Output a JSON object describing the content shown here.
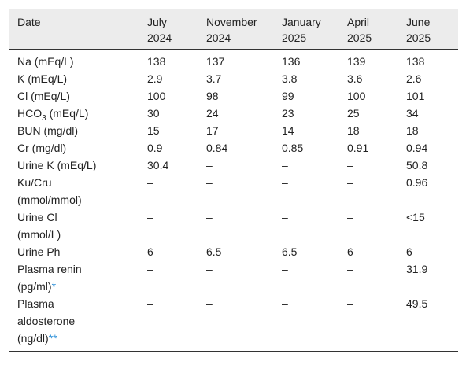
{
  "table": {
    "header": [
      [
        "Date"
      ],
      [
        "July",
        "2024"
      ],
      [
        "November",
        "2024"
      ],
      [
        "January",
        "2025"
      ],
      [
        "April",
        "2025"
      ],
      [
        "June",
        "2025"
      ]
    ],
    "rows": [
      {
        "label": [
          "Na (mEq/L)"
        ],
        "values": [
          "138",
          "137",
          "136",
          "139",
          "138"
        ]
      },
      {
        "label": [
          "K (mEq/L)"
        ],
        "values": [
          "2.9",
          "3.7",
          "3.8",
          "3.6",
          "2.6"
        ]
      },
      {
        "label": [
          "Cl (mEq/L)"
        ],
        "values": [
          "100",
          "98",
          "99",
          "100",
          "101"
        ]
      },
      {
        "label": [
          {
            "text": "HCO",
            "sub": "3",
            "after": " (mEq/L)"
          }
        ],
        "values": [
          "30",
          "24",
          "23",
          "25",
          "34"
        ]
      },
      {
        "label": [
          "BUN (mg/dl)"
        ],
        "values": [
          "15",
          "17",
          "14",
          "18",
          "18"
        ]
      },
      {
        "label": [
          "Cr (mg/dl)"
        ],
        "values": [
          "0.9",
          "0.84",
          "0.85",
          "0.91",
          "0.94"
        ]
      },
      {
        "label": [
          "Urine K (mEq/L)"
        ],
        "values": [
          "30.4",
          "–",
          "–",
          "–",
          "50.8"
        ]
      },
      {
        "label": [
          "Ku/Cru",
          "(mmol/mmol)"
        ],
        "values": [
          "–",
          "–",
          "–",
          "–",
          "0.96"
        ]
      },
      {
        "label": [
          "Urine Cl",
          "(mmol/L)"
        ],
        "values": [
          "–",
          "–",
          "–",
          "–",
          "<15"
        ]
      },
      {
        "label": [
          "Urine Ph"
        ],
        "values": [
          "6",
          "6.5",
          "6.5",
          "6",
          "6"
        ]
      },
      {
        "label": [
          "Plasma renin",
          "(pg/ml)"
        ],
        "note": "*",
        "values": [
          "–",
          "–",
          "–",
          "–",
          "31.9"
        ]
      },
      {
        "label": [
          "Plasma",
          "aldosterone",
          "(ng/dl)"
        ],
        "note": "**",
        "values": [
          "–",
          "–",
          "–",
          "–",
          "49.5"
        ]
      }
    ]
  }
}
